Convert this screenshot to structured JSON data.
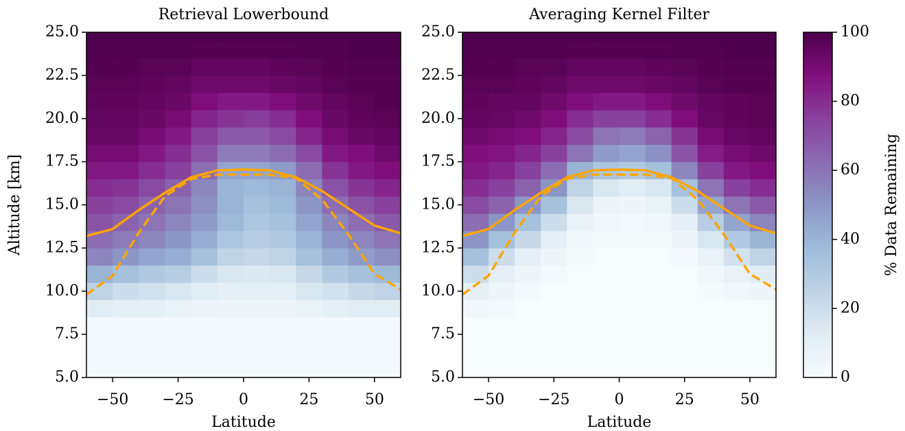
{
  "chart_data": [
    {
      "type": "heatmap",
      "title": "Retrieval Lowerbound",
      "xlabel": "Latitude",
      "ylabel": "Altitude [km]",
      "x": [
        -55,
        -45,
        -35,
        -25,
        -15,
        -5,
        5,
        15,
        25,
        35,
        45,
        55
      ],
      "y": [
        5,
        6,
        7,
        8,
        9,
        10,
        11,
        12,
        13,
        14,
        15,
        16,
        17,
        18,
        19,
        20,
        21,
        22,
        23,
        24,
        25
      ],
      "z": [
        [
          2,
          2,
          2,
          2,
          2,
          2,
          2,
          2,
          2,
          2,
          2,
          2
        ],
        [
          2,
          2,
          2,
          2,
          2,
          2,
          2,
          2,
          2,
          2,
          2,
          2
        ],
        [
          2,
          2,
          2,
          2,
          2,
          2,
          2,
          2,
          2,
          2,
          2,
          2
        ],
        [
          2,
          2,
          2,
          2,
          2,
          2,
          2,
          2,
          2,
          2,
          2,
          2
        ],
        [
          12,
          10,
          10,
          8,
          6,
          5,
          5,
          5,
          8,
          10,
          12,
          12
        ],
        [
          25,
          20,
          18,
          15,
          12,
          10,
          10,
          10,
          15,
          18,
          22,
          25
        ],
        [
          40,
          35,
          30,
          28,
          20,
          15,
          14,
          15,
          22,
          30,
          35,
          38
        ],
        [
          55,
          50,
          45,
          42,
          35,
          25,
          22,
          25,
          35,
          42,
          48,
          52
        ],
        [
          62,
          58,
          55,
          50,
          42,
          32,
          28,
          30,
          40,
          50,
          55,
          60
        ],
        [
          70,
          65,
          60,
          55,
          48,
          38,
          32,
          35,
          45,
          55,
          62,
          68
        ],
        [
          75,
          72,
          65,
          60,
          52,
          40,
          35,
          38,
          50,
          62,
          70,
          75
        ],
        [
          80,
          78,
          72,
          65,
          55,
          40,
          38,
          40,
          55,
          70,
          78,
          82
        ],
        [
          85,
          85,
          80,
          75,
          62,
          45,
          45,
          48,
          62,
          78,
          85,
          88
        ],
        [
          90,
          90,
          85,
          80,
          70,
          58,
          58,
          62,
          72,
          85,
          88,
          92
        ],
        [
          93,
          93,
          90,
          85,
          75,
          68,
          68,
          72,
          82,
          90,
          93,
          95
        ],
        [
          95,
          95,
          93,
          90,
          82,
          78,
          76,
          80,
          88,
          93,
          96,
          97
        ],
        [
          96,
          96,
          95,
          93,
          88,
          85,
          85,
          88,
          92,
          95,
          97,
          98
        ],
        [
          97,
          97,
          96,
          95,
          92,
          92,
          92,
          93,
          95,
          97,
          98,
          98
        ],
        [
          98,
          98,
          97,
          97,
          95,
          95,
          95,
          96,
          97,
          98,
          99,
          99
        ],
        [
          99,
          99,
          99,
          99,
          98,
          98,
          98,
          98,
          99,
          99,
          100,
          100
        ],
        [
          100,
          100,
          100,
          100,
          100,
          100,
          100,
          100,
          100,
          100,
          100,
          100
        ]
      ],
      "series": [
        {
          "color": "#ffa500",
          "dashed": false,
          "x": [
            -60,
            -50,
            -40,
            -30,
            -20,
            -10,
            0,
            10,
            20,
            30,
            40,
            50,
            60
          ],
          "values": [
            13.2,
            13.6,
            14.7,
            15.7,
            16.6,
            17.0,
            17.05,
            17.0,
            16.6,
            15.8,
            14.8,
            13.8,
            13.35
          ]
        },
        {
          "color": "#ffa500",
          "dashed": true,
          "x": [
            -60,
            -50,
            -40,
            -30,
            -20,
            -10,
            0,
            10,
            20,
            30,
            40,
            50,
            60
          ],
          "values": [
            9.8,
            10.9,
            13.4,
            15.5,
            16.5,
            16.75,
            16.75,
            16.75,
            16.55,
            15.3,
            13.3,
            11.0,
            10.1
          ]
        }
      ],
      "xlim": [
        -60,
        60
      ],
      "ylim": [
        5,
        25
      ],
      "xticks": [
        {
          "value": -50,
          "label": "−50"
        },
        {
          "value": -25,
          "label": "−25"
        },
        0,
        25,
        50
      ],
      "yticks": [
        {
          "value": 5,
          "label": "5.0"
        },
        {
          "value": 7.5,
          "label": "7.5"
        },
        {
          "value": 10,
          "label": "10.0"
        },
        {
          "value": 12.5,
          "label": "12.5"
        },
        {
          "value": 15,
          "label": "15.0"
        },
        {
          "value": 17.5,
          "label": "17.5"
        },
        {
          "value": 20,
          "label": "20.0"
        },
        {
          "value": 22.5,
          "label": "22.5"
        },
        {
          "value": 25,
          "label": "25.0"
        }
      ]
    },
    {
      "type": "heatmap",
      "title": "Averaging Kernel Filter",
      "xlabel": "Latitude",
      "x": [
        -55,
        -45,
        -35,
        -25,
        -15,
        -5,
        5,
        15,
        25,
        35,
        45,
        55
      ],
      "y": [
        5,
        6,
        7,
        8,
        9,
        10,
        11,
        12,
        13,
        14,
        15,
        16,
        17,
        18,
        19,
        20,
        21,
        22,
        23,
        24,
        25
      ],
      "z": [
        [
          0,
          0,
          0,
          0,
          0,
          0,
          0,
          0,
          0,
          0,
          0,
          0
        ],
        [
          0,
          0,
          0,
          0,
          0,
          0,
          0,
          0,
          0,
          0,
          0,
          0
        ],
        [
          0,
          0,
          0,
          0,
          0,
          0,
          0,
          0,
          0,
          0,
          0,
          0
        ],
        [
          0,
          0,
          0,
          0,
          0,
          0,
          0,
          0,
          0,
          0,
          0,
          0
        ],
        [
          3,
          2,
          0,
          0,
          0,
          0,
          0,
          0,
          0,
          0,
          0,
          0
        ],
        [
          10,
          5,
          2,
          0,
          0,
          0,
          0,
          0,
          0,
          1,
          3,
          5
        ],
        [
          20,
          10,
          5,
          2,
          0,
          0,
          0,
          0,
          0,
          3,
          8,
          12
        ],
        [
          35,
          20,
          10,
          5,
          1,
          0,
          0,
          0,
          2,
          8,
          18,
          25
        ],
        [
          50,
          35,
          22,
          10,
          3,
          1,
          1,
          1,
          5,
          15,
          30,
          40
        ],
        [
          62,
          50,
          35,
          20,
          8,
          3,
          2,
          3,
          10,
          28,
          45,
          55
        ],
        [
          72,
          65,
          50,
          35,
          15,
          6,
          5,
          8,
          20,
          45,
          60,
          68
        ],
        [
          80,
          75,
          65,
          50,
          25,
          15,
          12,
          15,
          35,
          60,
          75,
          80
        ],
        [
          85,
          82,
          75,
          62,
          40,
          32,
          30,
          35,
          55,
          75,
          85,
          88
        ],
        [
          88,
          86,
          82,
          75,
          60,
          48,
          45,
          52,
          70,
          84,
          90,
          92
        ],
        [
          92,
          90,
          88,
          82,
          72,
          60,
          58,
          65,
          78,
          90,
          94,
          95
        ],
        [
          95,
          94,
          92,
          88,
          80,
          75,
          75,
          80,
          88,
          94,
          96,
          97
        ],
        [
          96,
          95,
          95,
          92,
          88,
          85,
          85,
          88,
          92,
          95,
          96,
          97
        ],
        [
          97,
          97,
          96,
          95,
          92,
          92,
          92,
          93,
          95,
          97,
          98,
          98
        ],
        [
          98,
          98,
          97,
          97,
          95,
          95,
          95,
          96,
          97,
          98,
          99,
          99
        ],
        [
          99,
          99,
          99,
          99,
          98,
          98,
          98,
          98,
          99,
          99,
          100,
          100
        ],
        [
          100,
          100,
          100,
          100,
          100,
          100,
          100,
          100,
          100,
          100,
          100,
          100
        ]
      ],
      "series": [
        {
          "color": "#ffa500",
          "dashed": false,
          "x": [
            -60,
            -50,
            -40,
            -30,
            -20,
            -10,
            0,
            10,
            20,
            30,
            40,
            50,
            60
          ],
          "values": [
            13.2,
            13.6,
            14.7,
            15.7,
            16.6,
            17.0,
            17.05,
            17.0,
            16.6,
            15.8,
            14.8,
            13.8,
            13.35
          ]
        },
        {
          "color": "#ffa500",
          "dashed": true,
          "x": [
            -60,
            -50,
            -40,
            -30,
            -20,
            -10,
            0,
            10,
            20,
            30,
            40,
            50,
            60
          ],
          "values": [
            9.8,
            10.9,
            13.4,
            15.5,
            16.5,
            16.75,
            16.75,
            16.75,
            16.55,
            15.3,
            13.3,
            11.0,
            10.1
          ]
        }
      ],
      "xlim": [
        -60,
        60
      ],
      "ylim": [
        5,
        25
      ],
      "xticks": [
        {
          "value": -50,
          "label": "−50"
        },
        {
          "value": -25,
          "label": "−25"
        },
        0,
        25,
        50
      ],
      "yticks": [
        {
          "value": 5,
          "label": "5.0"
        },
        {
          "value": 7.5,
          "label": "7.5"
        },
        {
          "value": 10,
          "label": "10.0"
        },
        {
          "value": 12.5,
          "label": "12.5"
        },
        {
          "value": 15,
          "label": "15.0"
        },
        {
          "value": 17.5,
          "label": "17.5"
        },
        {
          "value": 20,
          "label": "20.0"
        },
        {
          "value": 22.5,
          "label": "22.5"
        },
        {
          "value": 25,
          "label": "25.0"
        }
      ]
    }
  ],
  "colorbar": {
    "label": "% Data Remaining",
    "lim": [
      0,
      100
    ],
    "ticks": [
      0,
      20,
      40,
      60,
      80,
      100
    ],
    "colors": [
      "#f7fcfd",
      "#e0ecf4",
      "#bfd3e6",
      "#9ebcda",
      "#8c96c6",
      "#8c6bb1",
      "#88419d",
      "#810f7c",
      "#4d004b"
    ]
  }
}
